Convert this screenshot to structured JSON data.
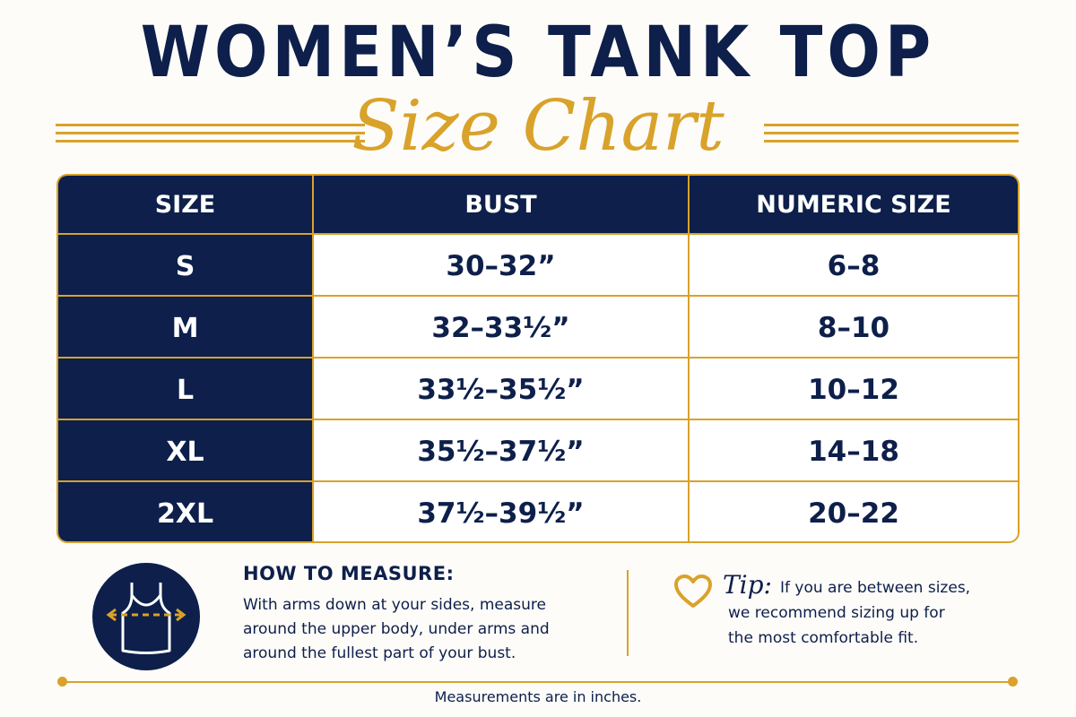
{
  "header": {
    "title": "WOMEN’S TANK TOP",
    "subtitle": "Size Chart"
  },
  "table": {
    "columns": [
      "SIZE",
      "BUST",
      "NUMERIC SIZE"
    ],
    "rows": [
      {
        "size": "S",
        "bust": "30–32”",
        "numeric": "6–8"
      },
      {
        "size": "M",
        "bust": "32–33½”",
        "numeric": "8–10"
      },
      {
        "size": "L",
        "bust": "33½–35½”",
        "numeric": "10–12"
      },
      {
        "size": "XL",
        "bust": "35½–37½”",
        "numeric": "14–18"
      },
      {
        "size": "2XL",
        "bust": "37½–39½”",
        "numeric": "20–22"
      }
    ]
  },
  "measure": {
    "icon": "tank-top-measure-icon",
    "title": "HOW TO MEASURE:",
    "text": "With arms down at your sides, measure around the upper body, under arms and around the fullest part of your bust."
  },
  "tip": {
    "icon": "heart-icon",
    "label": "Tip:",
    "line1": "If you are between sizes,",
    "line2": "we recommend sizing up for",
    "line3": "the most comfortable fit."
  },
  "footer": {
    "note": "Measurements are in inches."
  },
  "colors": {
    "navy": "#0d1f4a",
    "gold": "#d9a22a",
    "background": "#fdfcf9"
  }
}
